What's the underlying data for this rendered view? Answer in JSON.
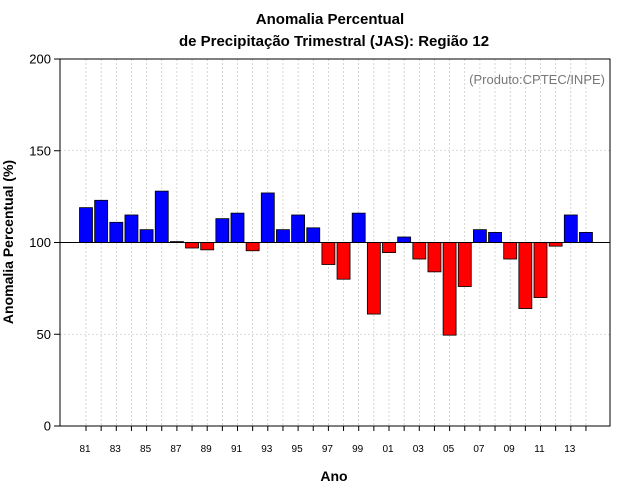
{
  "chart_data": {
    "type": "bar",
    "title_line1": "Anomalia Percentual",
    "title_line2": "de Precipitação Trimestral (JAS): Região 12",
    "xlabel": "Ano",
    "ylabel": "Anomalia Percentual (%)",
    "credit": "(Produto:CPTEC/INPE)",
    "baseline": 100,
    "ylim": [
      0,
      200
    ],
    "yticks": [
      0,
      50,
      100,
      150,
      200
    ],
    "categories": [
      "81",
      "82",
      "83",
      "84",
      "85",
      "86",
      "87",
      "88",
      "89",
      "90",
      "91",
      "92",
      "93",
      "94",
      "95",
      "96",
      "97",
      "98",
      "99",
      "00",
      "01",
      "02",
      "03",
      "04",
      "05",
      "06",
      "07",
      "08",
      "09",
      "10",
      "11",
      "12",
      "13",
      "14"
    ],
    "tick_labels": [
      "81",
      "83",
      "85",
      "87",
      "89",
      "91",
      "93",
      "95",
      "97",
      "99",
      "01",
      "03",
      "05",
      "07",
      "09",
      "11",
      "13"
    ],
    "values": [
      119,
      123,
      111,
      115,
      107,
      128,
      100.5,
      97,
      96,
      113,
      116,
      95.5,
      127,
      107,
      115,
      108,
      88,
      80,
      116,
      61,
      94.5,
      103,
      91,
      84,
      49.5,
      76,
      107,
      105.5,
      91,
      64,
      70,
      98,
      115,
      105.5
    ],
    "colors": {
      "above": "#0000ff",
      "below": "#ff0000",
      "grid": "#bbbbbb",
      "baseline": "#000000"
    },
    "grid": true
  }
}
